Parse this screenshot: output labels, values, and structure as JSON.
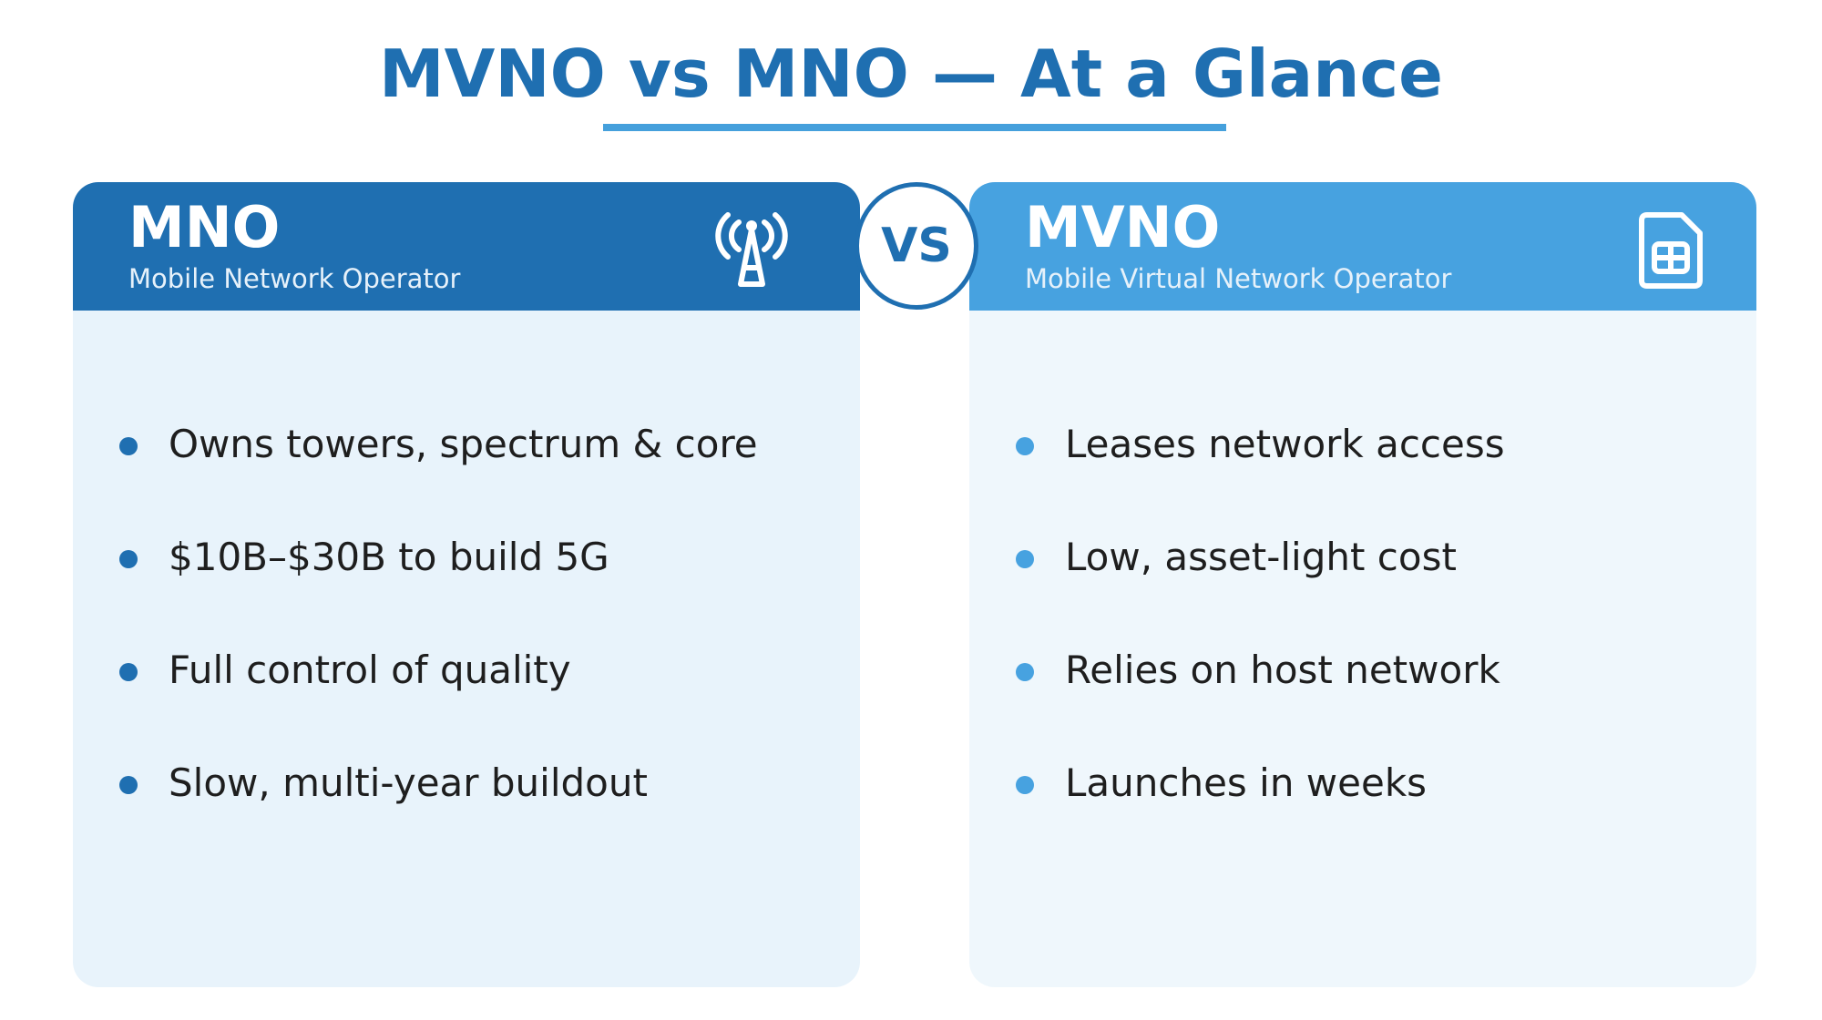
{
  "title": "MVNO vs MNO — At a Glance",
  "vs_label": "VS",
  "colors": {
    "primary": "#1f6fb1",
    "secondary": "#47a2e0",
    "left_panel_bg": "#e8f3fb",
    "right_panel_bg": "#eff7fc",
    "text": "#1e1e1e"
  },
  "left": {
    "title": "MNO",
    "subtitle": "Mobile Network Operator",
    "icon": "cell-tower-icon",
    "bullets": [
      "Owns towers, spectrum & core",
      "$10B–$30B to build 5G",
      "Full control of quality",
      "Slow, multi-year buildout"
    ]
  },
  "right": {
    "title": "MVNO",
    "subtitle": "Mobile Virtual Network Operator",
    "icon": "sim-card-icon",
    "bullets": [
      "Leases network access",
      "Low, asset-light cost",
      "Relies on host network",
      "Launches in weeks"
    ]
  }
}
